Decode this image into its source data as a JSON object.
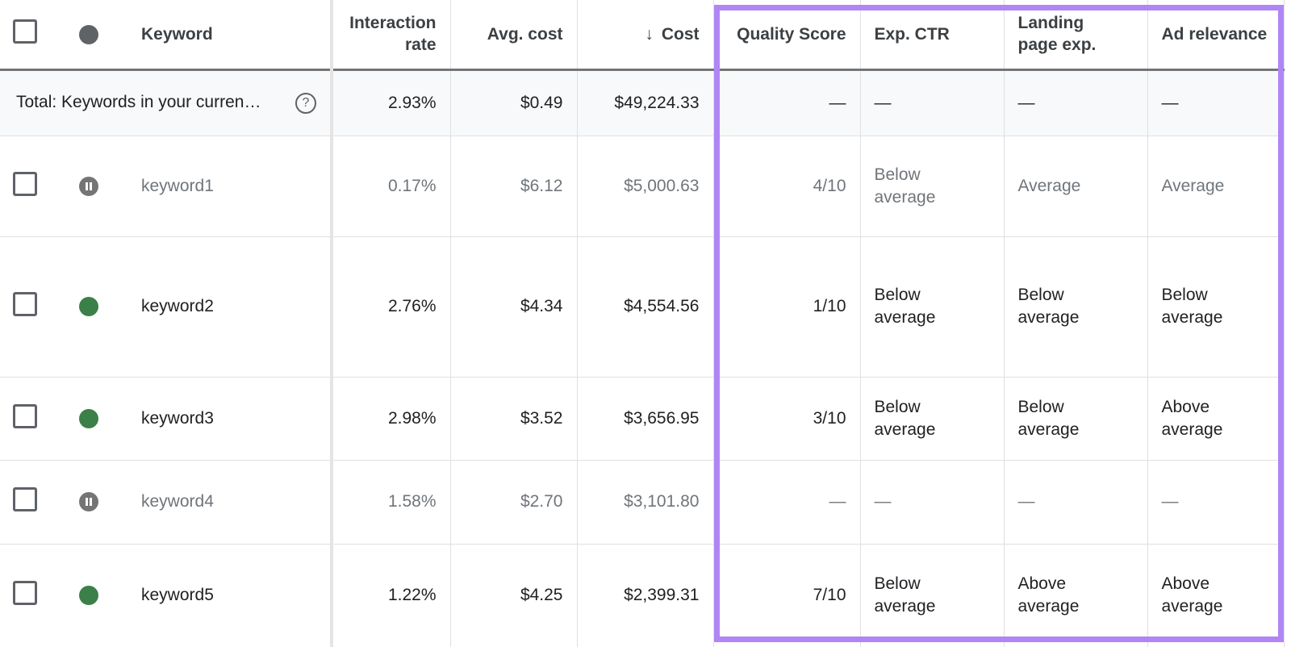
{
  "header": {
    "columns": [
      "Keyword",
      "Interaction rate",
      "Avg. cost",
      "Cost",
      "Quality Score",
      "Exp. CTR",
      "Landing page exp.",
      "Ad relevance"
    ]
  },
  "total": {
    "label": "Total: Keywords in your curren…",
    "cells": [
      "2.93%",
      "$0.49",
      "$49,224.33",
      "—",
      "—",
      "—",
      "—"
    ]
  },
  "rows": [
    {
      "keyword": "keyword1",
      "cells": [
        "0.17%",
        "$6.12",
        "$5,000.63",
        "4/10",
        "Below average",
        "Average",
        "Average"
      ]
    },
    {
      "keyword": "keyword2",
      "cells": [
        "2.76%",
        "$4.34",
        "$4,554.56",
        "1/10",
        "Below average",
        "Below average",
        "Below average"
      ]
    },
    {
      "keyword": "keyword3",
      "cells": [
        "2.98%",
        "$3.52",
        "$3,656.95",
        "3/10",
        "Below average",
        "Below average",
        "Above average"
      ]
    },
    {
      "keyword": "keyword4",
      "cells": [
        "1.58%",
        "$2.70",
        "$3,101.80",
        "—",
        "—",
        "—",
        "—"
      ]
    },
    {
      "keyword": "keyword5",
      "cells": [
        "1.22%",
        "$4.25",
        "$2,399.31",
        "7/10",
        "Below average",
        "Above average",
        "Above average"
      ]
    }
  ]
}
